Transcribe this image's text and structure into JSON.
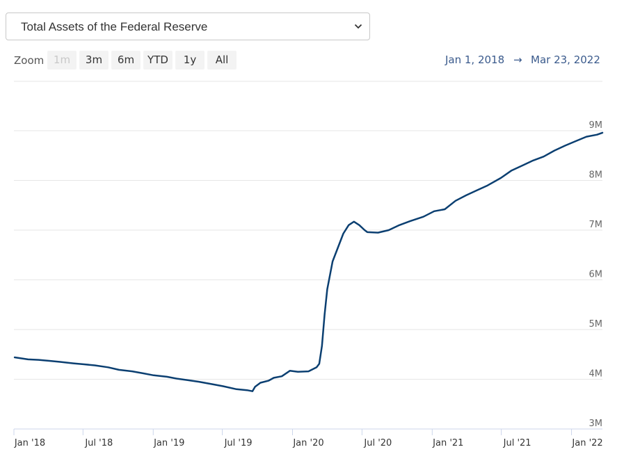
{
  "selector": {
    "label": "Total Assets of the Federal Reserve"
  },
  "zoom": {
    "label": "Zoom",
    "buttons": [
      "1m",
      "3m",
      "6m",
      "YTD",
      "1y",
      "All"
    ],
    "disabled": "1m"
  },
  "range": {
    "from": "Jan 1, 2018",
    "arrow": "→",
    "to": "Mar 23, 2022"
  },
  "colors": {
    "line": "#0b3f71",
    "grid": "#e6e6e6",
    "axis": "#ccd6eb"
  },
  "chart_data": {
    "type": "line",
    "title": "",
    "xlabel": "",
    "ylabel": "",
    "x_range": [
      "2018-01-01",
      "2022-03-23"
    ],
    "ylim": [
      3000000,
      9000000
    ],
    "y_ticks": [
      {
        "value": 3000000,
        "label": "3M"
      },
      {
        "value": 4000000,
        "label": "4M"
      },
      {
        "value": 5000000,
        "label": "5M"
      },
      {
        "value": 6000000,
        "label": "6M"
      },
      {
        "value": 7000000,
        "label": "7M"
      },
      {
        "value": 8000000,
        "label": "8M"
      },
      {
        "value": 9000000,
        "label": "9M"
      }
    ],
    "x_ticks": [
      {
        "date": "2018-01-01",
        "label": "Jan '18"
      },
      {
        "date": "2018-07-01",
        "label": "Jul '18"
      },
      {
        "date": "2019-01-01",
        "label": "Jan '19"
      },
      {
        "date": "2019-07-01",
        "label": "Jul '19"
      },
      {
        "date": "2020-01-01",
        "label": "Jan '20"
      },
      {
        "date": "2020-07-01",
        "label": "Jul '20"
      },
      {
        "date": "2021-01-01",
        "label": "Jan '21"
      },
      {
        "date": "2021-07-01",
        "label": "Jul '21"
      },
      {
        "date": "2022-01-01",
        "label": "Jan '22"
      }
    ],
    "grid": true,
    "legend": "none",
    "series": [
      {
        "points": [
          [
            "2018-01-03",
            4440000
          ],
          [
            "2018-02-07",
            4400000
          ],
          [
            "2018-03-07",
            4390000
          ],
          [
            "2018-04-04",
            4370000
          ],
          [
            "2018-05-02",
            4350000
          ],
          [
            "2018-06-06",
            4320000
          ],
          [
            "2018-07-04",
            4300000
          ],
          [
            "2018-08-01",
            4280000
          ],
          [
            "2018-09-05",
            4240000
          ],
          [
            "2018-10-03",
            4190000
          ],
          [
            "2018-11-07",
            4160000
          ],
          [
            "2018-12-05",
            4120000
          ],
          [
            "2019-01-02",
            4080000
          ],
          [
            "2019-02-06",
            4050000
          ],
          [
            "2019-03-06",
            4010000
          ],
          [
            "2019-04-03",
            3980000
          ],
          [
            "2019-05-01",
            3950000
          ],
          [
            "2019-06-05",
            3900000
          ],
          [
            "2019-07-03",
            3860000
          ],
          [
            "2019-08-07",
            3800000
          ],
          [
            "2019-09-04",
            3780000
          ],
          [
            "2019-09-18",
            3760000
          ],
          [
            "2019-09-25",
            3850000
          ],
          [
            "2019-10-09",
            3930000
          ],
          [
            "2019-10-30",
            3970000
          ],
          [
            "2019-11-13",
            4030000
          ],
          [
            "2019-12-04",
            4060000
          ],
          [
            "2019-12-25",
            4170000
          ],
          [
            "2020-01-15",
            4150000
          ],
          [
            "2020-02-12",
            4160000
          ],
          [
            "2020-03-04",
            4240000
          ],
          [
            "2020-03-11",
            4310000
          ],
          [
            "2020-03-18",
            4670000
          ],
          [
            "2020-03-25",
            5300000
          ],
          [
            "2020-04-01",
            5810000
          ],
          [
            "2020-04-15",
            6370000
          ],
          [
            "2020-04-29",
            6650000
          ],
          [
            "2020-05-13",
            6930000
          ],
          [
            "2020-05-27",
            7100000
          ],
          [
            "2020-06-10",
            7170000
          ],
          [
            "2020-06-24",
            7100000
          ],
          [
            "2020-07-08",
            7000000
          ],
          [
            "2020-07-15",
            6960000
          ],
          [
            "2020-08-12",
            6950000
          ],
          [
            "2020-09-09",
            7000000
          ],
          [
            "2020-10-07",
            7100000
          ],
          [
            "2020-11-04",
            7180000
          ],
          [
            "2020-12-09",
            7270000
          ],
          [
            "2021-01-06",
            7380000
          ],
          [
            "2021-02-03",
            7420000
          ],
          [
            "2021-03-03",
            7590000
          ],
          [
            "2021-03-31",
            7700000
          ],
          [
            "2021-04-28",
            7800000
          ],
          [
            "2021-05-26",
            7900000
          ],
          [
            "2021-06-30",
            8050000
          ],
          [
            "2021-07-28",
            8200000
          ],
          [
            "2021-08-25",
            8300000
          ],
          [
            "2021-09-22",
            8400000
          ],
          [
            "2021-10-20",
            8480000
          ],
          [
            "2021-11-17",
            8600000
          ],
          [
            "2021-12-15",
            8700000
          ],
          [
            "2022-01-12",
            8790000
          ],
          [
            "2022-02-09",
            8880000
          ],
          [
            "2022-03-09",
            8920000
          ],
          [
            "2022-03-23",
            8960000
          ]
        ]
      }
    ]
  }
}
